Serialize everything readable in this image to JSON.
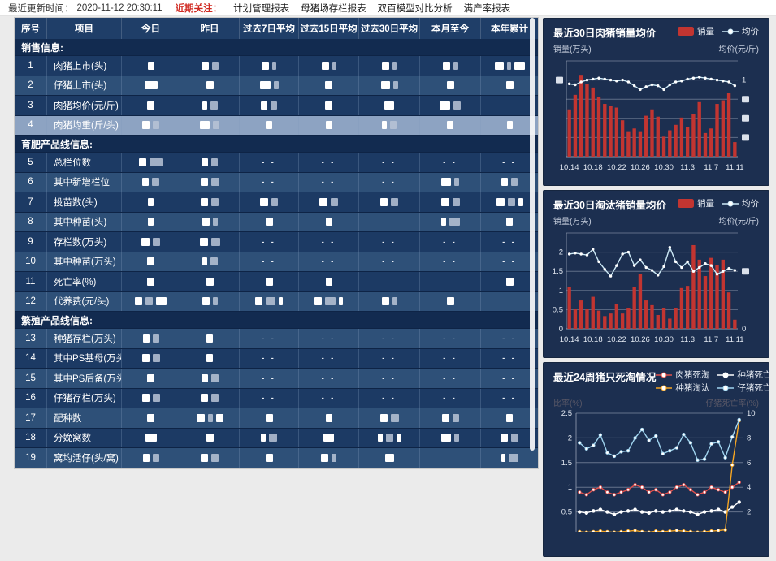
{
  "topbar": {
    "updated_label": "最近更新时间：",
    "updated_time": "2020-11-12 20:30:11",
    "focus_label": "近期关注：",
    "menu": [
      "计划管理报表",
      "母猪场存栏报表",
      "双百模型对比分析",
      "满产率报表"
    ]
  },
  "table": {
    "headers": [
      "序号",
      "项目",
      "今日",
      "昨日",
      "过去7日平均",
      "过去15日平均",
      "过去30日平均",
      "本月至今",
      "本年累计"
    ],
    "redaction_note": "numeric cell values are blurred in the source; encoded here as white block widths, '--' means dashes shown",
    "rows": [
      {
        "type": "section",
        "label": "销售信息:"
      },
      {
        "type": "row",
        "no": "1",
        "label": "肉猪上市(头)",
        "shade": "dark",
        "cells": [
          "8",
          "9 8",
          "9 5",
          "9 5",
          "9 5",
          "9 6",
          "11 5 13"
        ]
      },
      {
        "type": "row",
        "no": "2",
        "label": "仔猪上市(头)",
        "shade": "light",
        "cells": [
          "16",
          "9",
          "13 6",
          "9",
          "11 6",
          "9",
          "9"
        ]
      },
      {
        "type": "row",
        "no": "3",
        "label": "肉猪均价(元/斤)",
        "shade": "dark",
        "cells": [
          "9",
          "6 9",
          "8 8",
          "9",
          "12",
          "13 9",
          ""
        ]
      },
      {
        "type": "row",
        "no": "4",
        "label": "肉猪均重(斤/头)",
        "shade": "highlight",
        "cells": [
          "9 8",
          "12 8",
          "8",
          "8",
          "6 8",
          "8",
          "7"
        ]
      },
      {
        "type": "section",
        "label": "育肥产品线信息:"
      },
      {
        "type": "row",
        "no": "5",
        "label": "总栏位数",
        "shade": "dark",
        "cells": [
          "9 16",
          "8 8",
          "--",
          "--",
          "--",
          "--",
          "--"
        ]
      },
      {
        "type": "row",
        "no": "6",
        "label": "其中新增栏位",
        "shade": "light",
        "cells": [
          "8 9",
          "9 10",
          "--",
          "--",
          "--",
          "12 6",
          "8 8"
        ]
      },
      {
        "type": "row",
        "no": "7",
        "label": "投苗数(头)",
        "shade": "dark",
        "cells": [
          "7",
          "9 9",
          "10 8",
          "10 9",
          "9 9",
          "10 9",
          "10 9 6"
        ]
      },
      {
        "type": "row",
        "no": "8",
        "label": "其中种苗(头)",
        "shade": "light",
        "cells": [
          "7",
          "9 6",
          "9",
          "8",
          "",
          "6 13",
          "8"
        ]
      },
      {
        "type": "row",
        "no": "9",
        "label": "存栏数(万头)",
        "shade": "dark",
        "cells": [
          "10 9",
          "10 11",
          "--",
          "--",
          "--",
          "--",
          "--"
        ]
      },
      {
        "type": "row",
        "no": "10",
        "label": "其中种苗(万头)",
        "shade": "light",
        "cells": [
          "9",
          "6 9",
          "--",
          "--",
          "--",
          "--",
          "--"
        ]
      },
      {
        "type": "row",
        "no": "11",
        "label": "死亡率(%)",
        "shade": "dark",
        "cells": [
          "9",
          "9",
          "9",
          "8",
          "",
          "",
          "9"
        ]
      },
      {
        "type": "row",
        "no": "12",
        "label": "代养费(元/头)",
        "shade": "light",
        "cells": [
          "9 9 13",
          "9 6",
          "9 12 5",
          "9 13 5",
          "9 6",
          "9",
          ""
        ]
      },
      {
        "type": "section",
        "label": "繁殖产品线信息:"
      },
      {
        "type": "row",
        "no": "13",
        "label": "种猪存栏(万头)",
        "shade": "light",
        "cells": [
          "8 8",
          "8",
          "--",
          "--",
          "--",
          "--",
          "--"
        ]
      },
      {
        "type": "row",
        "no": "14",
        "label": "其中PS基母(万头)",
        "shade": "dark",
        "cells": [
          "9 9",
          "8",
          "--",
          "--",
          "--",
          "--",
          "--"
        ]
      },
      {
        "type": "row",
        "no": "15",
        "label": "其中PS后备(万头)",
        "shade": "light",
        "cells": [
          "9",
          "8 9",
          "--",
          "--",
          "--",
          "--",
          "--"
        ]
      },
      {
        "type": "row",
        "no": "16",
        "label": "仔猪存栏(万头)",
        "shade": "dark",
        "cells": [
          "9 9",
          "9 9",
          "--",
          "--",
          "--",
          "--",
          "--"
        ]
      },
      {
        "type": "row",
        "no": "17",
        "label": "配种数",
        "shade": "light",
        "cells": [
          "9",
          "10 6 9",
          "9",
          "8",
          "9 10",
          "9 8",
          "8"
        ]
      },
      {
        "type": "row",
        "no": "18",
        "label": "分娩窝数",
        "shade": "dark",
        "cells": [
          "14",
          "9",
          "6 10",
          "13",
          "6 9 6",
          "12 6",
          "9 9"
        ]
      },
      {
        "type": "row",
        "no": "19",
        "label": "窝均活仔(头/窝)",
        "shade": "light",
        "cells": [
          "8 8",
          "9 9",
          "9",
          "9 6",
          "11",
          "",
          "5 12"
        ]
      }
    ]
  },
  "charts": [
    {
      "id": "hog-sales-30d",
      "type": "barline",
      "title": "最近30日肉猪销量均价",
      "legend": {
        "bar": "销量",
        "line": "均价"
      },
      "axis_left_label": "销量(万头)",
      "axis_right_label": "均价(元/斤)",
      "left_ticks": [
        "",
        "##",
        "",
        "",
        "",
        ""
      ],
      "right_ticks": [
        "",
        "1",
        "##",
        "##",
        "##",
        ""
      ],
      "x_tick_labels": [
        "10.14",
        "10.18",
        "10.22",
        "10.26",
        "10.30",
        "11.3",
        "11.7",
        "11.11"
      ],
      "chart_data": {
        "type": "bar+line",
        "n_points": 29,
        "x_range": "2020.10.14 - 2020.11.11 daily",
        "bars": {
          "name": "销量",
          "unit": "万头 (axis values redacted)",
          "values_pct_of_axis": [
            52,
            68,
            90,
            80,
            76,
            66,
            58,
            56,
            54,
            40,
            28,
            31,
            28,
            45,
            52,
            44,
            22,
            29,
            35,
            43,
            33,
            47,
            60,
            26,
            31,
            58,
            62,
            70,
            16
          ]
        },
        "line": {
          "name": "均价",
          "unit": "元/斤 (axis values mostly redacted, tick '1x' visible)",
          "values_pct_of_axis": [
            76,
            75,
            78,
            80,
            81,
            82,
            81,
            80,
            79,
            80,
            78,
            74,
            70,
            73,
            75,
            74,
            70,
            75,
            78,
            79,
            81,
            82,
            83,
            82,
            81,
            80,
            79,
            78,
            74
          ]
        }
      }
    },
    {
      "id": "cull-hog-sales-30d",
      "type": "barline",
      "title": "最近30日淘汰猪销量均价",
      "legend": {
        "bar": "销量",
        "line": "均价"
      },
      "axis_left_label": "销量(万头)",
      "axis_right_label": "均价(元/斤)",
      "left_ticks": [
        "",
        "2",
        "1.5",
        "1",
        "0.5",
        "0"
      ],
      "right_ticks": [
        "",
        "",
        "##",
        "",
        "",
        "0"
      ],
      "x_tick_labels": [
        "10.14",
        "10.18",
        "10.22",
        "10.26",
        "10.30",
        "11.3",
        "11.7",
        "11.11"
      ],
      "chart_data": {
        "type": "bar+line",
        "n_points": 29,
        "ylim_left": [
          0,
          2.5
        ],
        "x_range": "2020.10.14 - 2020.11.11 daily",
        "bars": {
          "name": "销量",
          "unit": "万头",
          "values": [
            1.15,
            0.55,
            0.78,
            0.55,
            0.88,
            0.5,
            0.35,
            0.42,
            0.68,
            0.42,
            0.58,
            1.15,
            1.5,
            0.78,
            0.65,
            0.38,
            0.58,
            0.28,
            0.58,
            1.12,
            1.18,
            2.3,
            1.9,
            1.45,
            1.95,
            1.75,
            1.9,
            1.0,
            0.25
          ]
        },
        "line": {
          "name": "均价",
          "unit": "元/斤 (axis values mostly redacted, '0' visible)",
          "values_pct_of_axis": [
            78,
            79,
            78,
            77,
            83,
            70,
            62,
            55,
            66,
            78,
            80,
            66,
            72,
            64,
            61,
            56,
            65,
            85,
            70,
            64,
            70,
            60,
            64,
            68,
            66,
            57,
            60,
            63,
            61
          ]
        }
      }
    },
    {
      "id": "death-cull-24w",
      "type": "multiline",
      "title": "最近24周猪只死淘情况",
      "legend_series": [
        {
          "label": "肉猪死淘",
          "color": "#e2504c"
        },
        {
          "label": "种猪死亡",
          "color": "#ffffff"
        },
        {
          "label": "种猪淘汰",
          "color": "#f6a623"
        },
        {
          "label": "仔猪死亡",
          "color": "#9fd4ef"
        }
      ],
      "axis_left_label": "比率(%)",
      "axis_right_label": "仔猪死亡率(%)",
      "chart_data": {
        "type": "line",
        "n_points": 24,
        "x_range": "last 24 weeks (x labels cropped out of screenshot)",
        "ylim_left": [
          0,
          2.5
        ],
        "ylim_right": [
          0,
          10
        ],
        "left_ticks": [
          2.5,
          2,
          1.5,
          1,
          0.5,
          0
        ],
        "right_ticks": [
          10,
          8,
          6,
          4,
          2,
          0
        ],
        "series": [
          {
            "name": "肉猪死淘",
            "axis": "left",
            "color": "#e2504c",
            "values": [
              0.9,
              0.85,
              0.95,
              1.0,
              0.9,
              0.85,
              0.9,
              0.95,
              1.05,
              1.0,
              0.9,
              0.95,
              0.85,
              0.9,
              1.0,
              1.05,
              0.95,
              0.85,
              0.9,
              1.0,
              0.95,
              0.9,
              1.0,
              1.1
            ]
          },
          {
            "name": "种猪死亡",
            "axis": "left",
            "color": "#ffffff",
            "values": [
              0.5,
              0.48,
              0.52,
              0.55,
              0.5,
              0.45,
              0.5,
              0.52,
              0.55,
              0.5,
              0.48,
              0.52,
              0.5,
              0.52,
              0.55,
              0.52,
              0.5,
              0.45,
              0.5,
              0.52,
              0.55,
              0.5,
              0.6,
              0.7
            ]
          },
          {
            "name": "种猪淘汰",
            "axis": "right",
            "color": "#f6a623",
            "values": [
              0.4,
              0.35,
              0.4,
              0.45,
              0.4,
              0.35,
              0.4,
              0.45,
              0.5,
              0.4,
              0.35,
              0.45,
              0.4,
              0.45,
              0.5,
              0.45,
              0.4,
              0.35,
              0.4,
              0.45,
              0.5,
              0.55,
              5.8,
              9.4
            ]
          },
          {
            "name": "仔猪死亡",
            "axis": "left",
            "color": "#9fd4ef",
            "values": [
              1.9,
              1.78,
              1.85,
              2.06,
              1.7,
              1.63,
              1.72,
              1.74,
              2.0,
              2.17,
              1.95,
              2.04,
              1.68,
              1.74,
              1.8,
              2.07,
              1.9,
              1.55,
              1.57,
              1.88,
              1.92,
              1.6,
              2.02,
              2.37
            ]
          }
        ],
        "note": "panel is cropped by the bottom edge of the screenshot; only the 仔猪死亡 line and the rising 种猪淘汰 spike are visible"
      }
    }
  ],
  "colors": {
    "bar_red": "#c23531",
    "avg_line": "#cdeaf7",
    "card_bg": "#1c2f50",
    "table_header_bg": "#1f3e68",
    "row_dark": "#1c3a64",
    "row_light": "#2e5078",
    "row_highlight": "#8da3c2",
    "section_bg": "#122b50",
    "focus_red": "#d02a22",
    "grid_line": "#97a1b4"
  }
}
